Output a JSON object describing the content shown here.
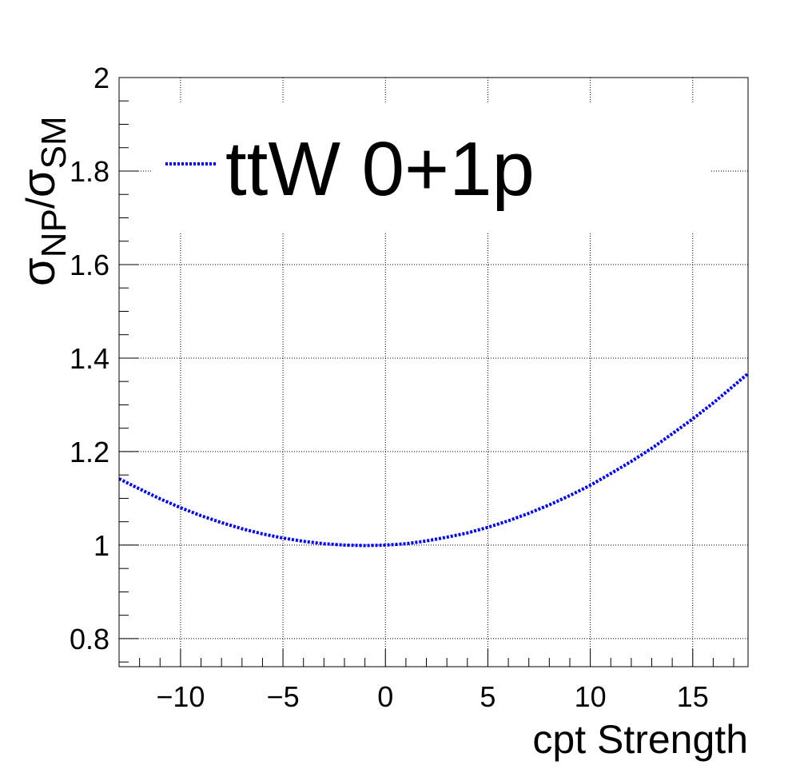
{
  "chart_data": {
    "type": "line",
    "xlabel": "cpt Strength",
    "ylabel": {
      "sym": "σ",
      "sub_np": "NP",
      "slash": "/",
      "sub_sm": "SM"
    },
    "xlim": [
      -13,
      17.7
    ],
    "ylim": [
      0.74,
      2.0
    ],
    "x_ticks": [
      {
        "value": -10,
        "label": "−10"
      },
      {
        "value": -5,
        "label": "−5"
      },
      {
        "value": 0,
        "label": "0"
      },
      {
        "value": 5,
        "label": "5"
      },
      {
        "value": 10,
        "label": "10"
      },
      {
        "value": 15,
        "label": "15"
      }
    ],
    "y_ticks": [
      {
        "value": 0.8,
        "label": "0.8"
      },
      {
        "value": 1.0,
        "label": "1"
      },
      {
        "value": 1.2,
        "label": "1.2"
      },
      {
        "value": 1.4,
        "label": "1.4"
      },
      {
        "value": 1.6,
        "label": "1.6"
      },
      {
        "value": 1.8,
        "label": "1.8"
      },
      {
        "value": 2.0,
        "label": "2"
      }
    ],
    "grid": true,
    "legend": {
      "placement": "top-left",
      "entries": [
        {
          "label": "ttW 0+1p",
          "color": "#0000ff",
          "style": "dotted"
        }
      ]
    },
    "series": [
      {
        "name": "ttW 0+1p",
        "color": "#0000ff",
        "x": [
          -13,
          -12,
          -11,
          -10,
          -9,
          -8,
          -7,
          -6,
          -5,
          -4,
          -3,
          -2,
          -1,
          0,
          1,
          2,
          3,
          4,
          5,
          6,
          7,
          8,
          9,
          10,
          11,
          12,
          13,
          14,
          15,
          16,
          17,
          17.7
        ],
        "y": [
          1.142,
          1.12,
          1.099,
          1.08,
          1.063,
          1.048,
          1.035,
          1.024,
          1.015,
          1.008,
          1.003,
          1.0,
          0.999,
          1.0,
          1.003,
          1.009,
          1.017,
          1.026,
          1.038,
          1.052,
          1.068,
          1.086,
          1.106,
          1.128,
          1.153,
          1.179,
          1.207,
          1.238,
          1.27,
          1.304,
          1.341,
          1.367
        ]
      }
    ]
  }
}
